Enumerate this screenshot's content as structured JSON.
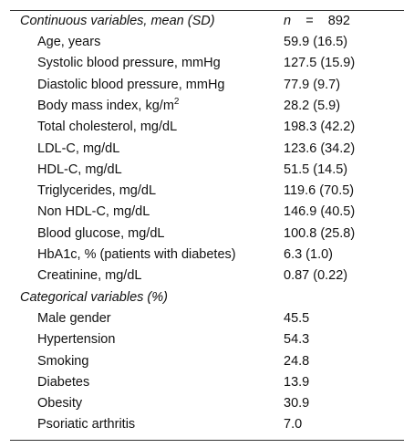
{
  "table": {
    "header": {
      "label": "Continuous variables, mean (SD)",
      "n_symbol": "n",
      "n_equals": "=",
      "n_value": "892"
    },
    "continuous": [
      {
        "label": "Age, years",
        "value": "59.9 (16.5)"
      },
      {
        "label": "Systolic blood pressure, mmHg",
        "value": "127.5 (15.9)"
      },
      {
        "label": "Diastolic blood pressure, mmHg",
        "value": "77.9 (9.7)"
      },
      {
        "label": "Body mass index, kg/m",
        "superscript": "2",
        "value": "28.2 (5.9)"
      },
      {
        "label": "Total cholesterol, mg/dL",
        "value": "198.3 (42.2)"
      },
      {
        "label": "LDL-C, mg/dL",
        "value": "123.6 (34.2)"
      },
      {
        "label": "HDL-C, mg/dL",
        "value": "51.5 (14.5)"
      },
      {
        "label": "Triglycerides, mg/dL",
        "value": "119.6 (70.5)"
      },
      {
        "label": "Non HDL-C, mg/dL",
        "value": "146.9 (40.5)"
      },
      {
        "label": "Blood glucose, mg/dL",
        "value": "100.8 (25.8)"
      },
      {
        "label": "HbA1c, % (patients with diabetes)",
        "value": "6.3 (1.0)"
      },
      {
        "label": "Creatinine, mg/dL",
        "value": "0.87 (0.22)"
      }
    ],
    "categorical_header": "Categorical variables (%)",
    "categorical": [
      {
        "label": "Male gender",
        "value": "45.5"
      },
      {
        "label": "Hypertension",
        "value": "54.3"
      },
      {
        "label": "Smoking",
        "value": "24.8"
      },
      {
        "label": "Diabetes",
        "value": "13.9"
      },
      {
        "label": "Obesity",
        "value": "30.9"
      },
      {
        "label": "Psoriatic arthritis",
        "value": "7.0"
      }
    ]
  }
}
